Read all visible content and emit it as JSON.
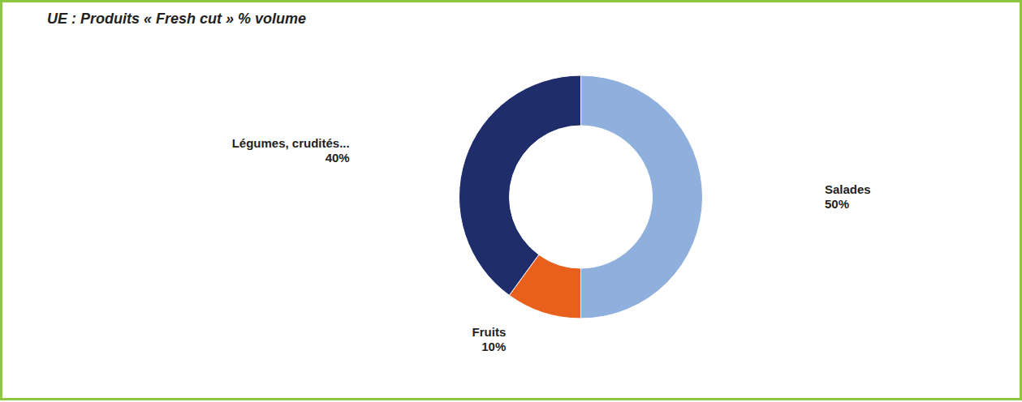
{
  "chart_data": {
    "type": "pie",
    "title": "UE : Produits « Fresh cut » % volume",
    "categories": [
      "Salades",
      "Fruits",
      "Légumes, crudités..."
    ],
    "values": [
      50,
      10,
      40
    ],
    "value_labels": [
      "50%",
      "10%",
      "40%"
    ],
    "colors": [
      "#8fb0dc",
      "#e8601c",
      "#1f2d6b"
    ],
    "data_labels": true
  }
}
